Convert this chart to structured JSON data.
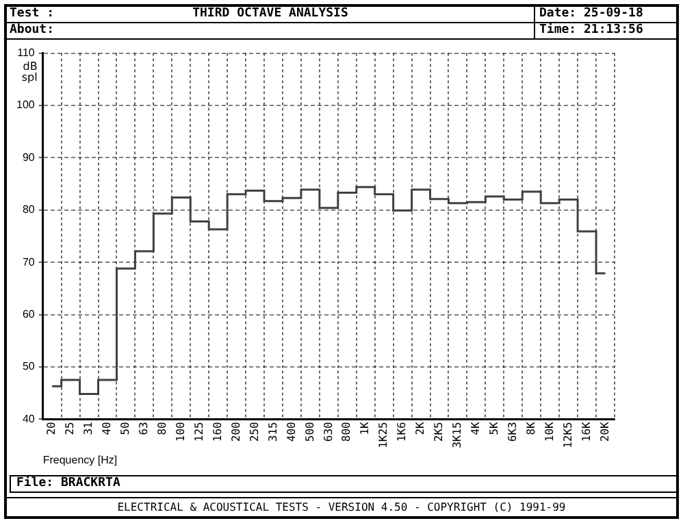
{
  "chart_data": {
    "type": "step",
    "title": "THIRD OCTAVE ANALYSIS",
    "xlabel": "Frequency [Hz]",
    "ylabel": "dB spl",
    "annotations": [
      "Test :",
      "About:",
      "Date: 25-09-18",
      "Time: 21:13:56",
      "File: BRACKRTA",
      "ELECTRICAL & ACOUSTICAL TESTS - VERSION 4.50 - COPYRIGHT (C) 1991-99"
    ],
    "categories": [
      "20",
      "25",
      "31",
      "40",
      "50",
      "63",
      "80",
      "100",
      "125",
      "160",
      "200",
      "250",
      "315",
      "400",
      "500",
      "630",
      "800",
      "1K",
      "1K25",
      "1K6",
      "2K",
      "2K5",
      "3K15",
      "4K",
      "5K",
      "6K3",
      "8K",
      "10K",
      "12K5",
      "16K",
      "20K"
    ],
    "series": [
      {
        "color": "#404040",
        "values": [
          46.3,
          47.5,
          44.8,
          47.5,
          68.8,
          72.1,
          79.3,
          82.4,
          77.8,
          76.3,
          83.0,
          83.7,
          81.7,
          82.3,
          83.9,
          80.4,
          83.3,
          84.4,
          83.0,
          79.9,
          83.9,
          82.1,
          81.3,
          81.5,
          82.6,
          82.0,
          83.5,
          81.3,
          82.0,
          75.9,
          67.9
        ]
      }
    ],
    "ylim": [
      40,
      110
    ],
    "yticks": [
      40,
      50,
      60,
      70,
      80,
      90,
      100,
      110
    ],
    "grid": true,
    "legend": false,
    "line_style": "solid",
    "marker": "none"
  }
}
